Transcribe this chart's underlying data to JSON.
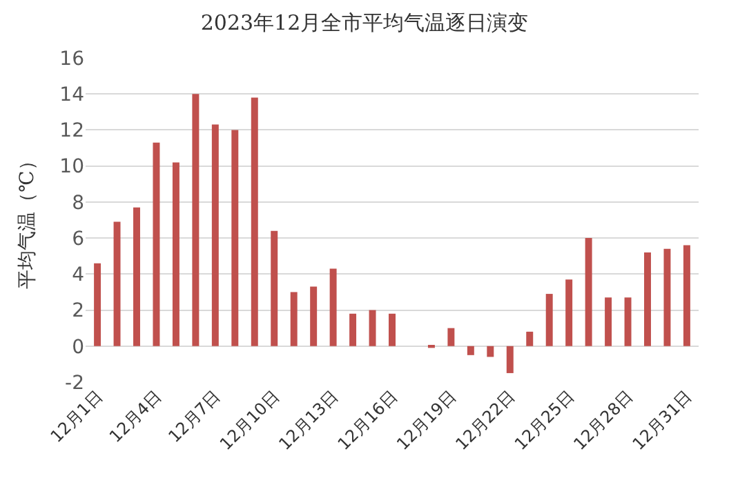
{
  "chart_data": {
    "type": "bar",
    "title": "2023年12月全市平均气温逐日演变",
    "ylabel": "平均气温（℃）",
    "categories": [
      "12月1日",
      null,
      null,
      "12月4日",
      null,
      null,
      "12月7日",
      null,
      null,
      "12月10日",
      null,
      null,
      "12月13日",
      null,
      null,
      "12月16日",
      null,
      null,
      "12月19日",
      null,
      null,
      "12月22日",
      null,
      null,
      "12月25日",
      null,
      null,
      "12月28日",
      null,
      null,
      "12月31日"
    ],
    "values": [
      4.6,
      6.9,
      7.7,
      11.3,
      10.2,
      14.0,
      12.3,
      12.0,
      13.8,
      6.4,
      3.0,
      3.3,
      4.3,
      1.8,
      2.0,
      1.8,
      0,
      -0.1,
      1.0,
      -0.5,
      -0.6,
      -1.5,
      0.8,
      2.9,
      3.7,
      6.0,
      2.7,
      2.7,
      5.2,
      5.4,
      5.6
    ],
    "color": "#c0504d",
    "ylim": [
      -2,
      16
    ],
    "yticks": [
      -2,
      0,
      2,
      4,
      6,
      8,
      10,
      12,
      14,
      16
    ],
    "grid": "y"
  }
}
